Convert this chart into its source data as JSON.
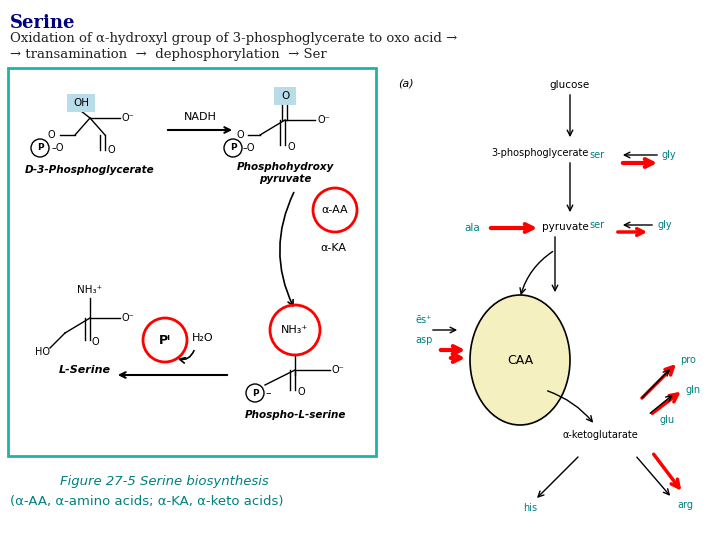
{
  "title": "Serine",
  "title_color": "#000080",
  "title_fontsize": 13,
  "line1": "Oxidation of α-hydroxyl group of 3-phosphoglycerate to oxo acid →",
  "line2": "→ transamination  →  dephosphorylation  → Ser",
  "text_fontsize": 9.5,
  "text_color": "#222222",
  "caption1": "Figure 27-5 Serine biosynthesis",
  "caption2": "(α-AA, α-amino acids; α-KA, α-keto acids)",
  "caption_color": "#008080",
  "caption_fontsize": 9.5,
  "bg_color": "#ffffff",
  "box_color": "#20b2aa",
  "teal": "#008080",
  "red": "#cc0000"
}
